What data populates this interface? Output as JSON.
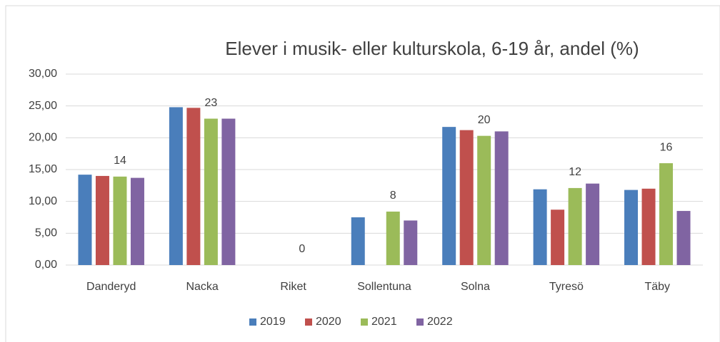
{
  "chart_data": {
    "type": "bar",
    "title": "Elever i musik- eller kulturskola, 6-19 år, andel (%)",
    "categories": [
      "Danderyd",
      "Nacka",
      "Riket",
      "Sollentuna",
      "Solna",
      "Tyresö",
      "Täby"
    ],
    "series": [
      {
        "name": "2019",
        "color": "#4a7ebb",
        "values": [
          14.2,
          24.8,
          null,
          7.5,
          21.7,
          11.9,
          11.8
        ]
      },
      {
        "name": "2020",
        "color": "#c0504d",
        "values": [
          14.0,
          24.7,
          null,
          null,
          21.2,
          8.7,
          12.0
        ]
      },
      {
        "name": "2021",
        "color": "#9bbb59",
        "values": [
          13.9,
          23.0,
          0,
          8.4,
          20.3,
          12.1,
          16.0
        ],
        "value_labels": [
          "14",
          "23",
          "0",
          "8",
          "20",
          "12",
          "16"
        ]
      },
      {
        "name": "2022",
        "color": "#8064a2",
        "values": [
          13.7,
          23.0,
          null,
          7.0,
          21.0,
          12.8,
          8.5
        ]
      }
    ],
    "ylim": [
      0,
      30
    ],
    "yticks": [
      {
        "value": 0,
        "label": "0,00"
      },
      {
        "value": 5,
        "label": "5,00"
      },
      {
        "value": 10,
        "label": "10,00"
      },
      {
        "value": 15,
        "label": "15,00"
      },
      {
        "value": 20,
        "label": "20,00"
      },
      {
        "value": 25,
        "label": "25,00"
      },
      {
        "value": 30,
        "label": "30,00"
      }
    ],
    "grid": true,
    "legend": "bottom"
  }
}
